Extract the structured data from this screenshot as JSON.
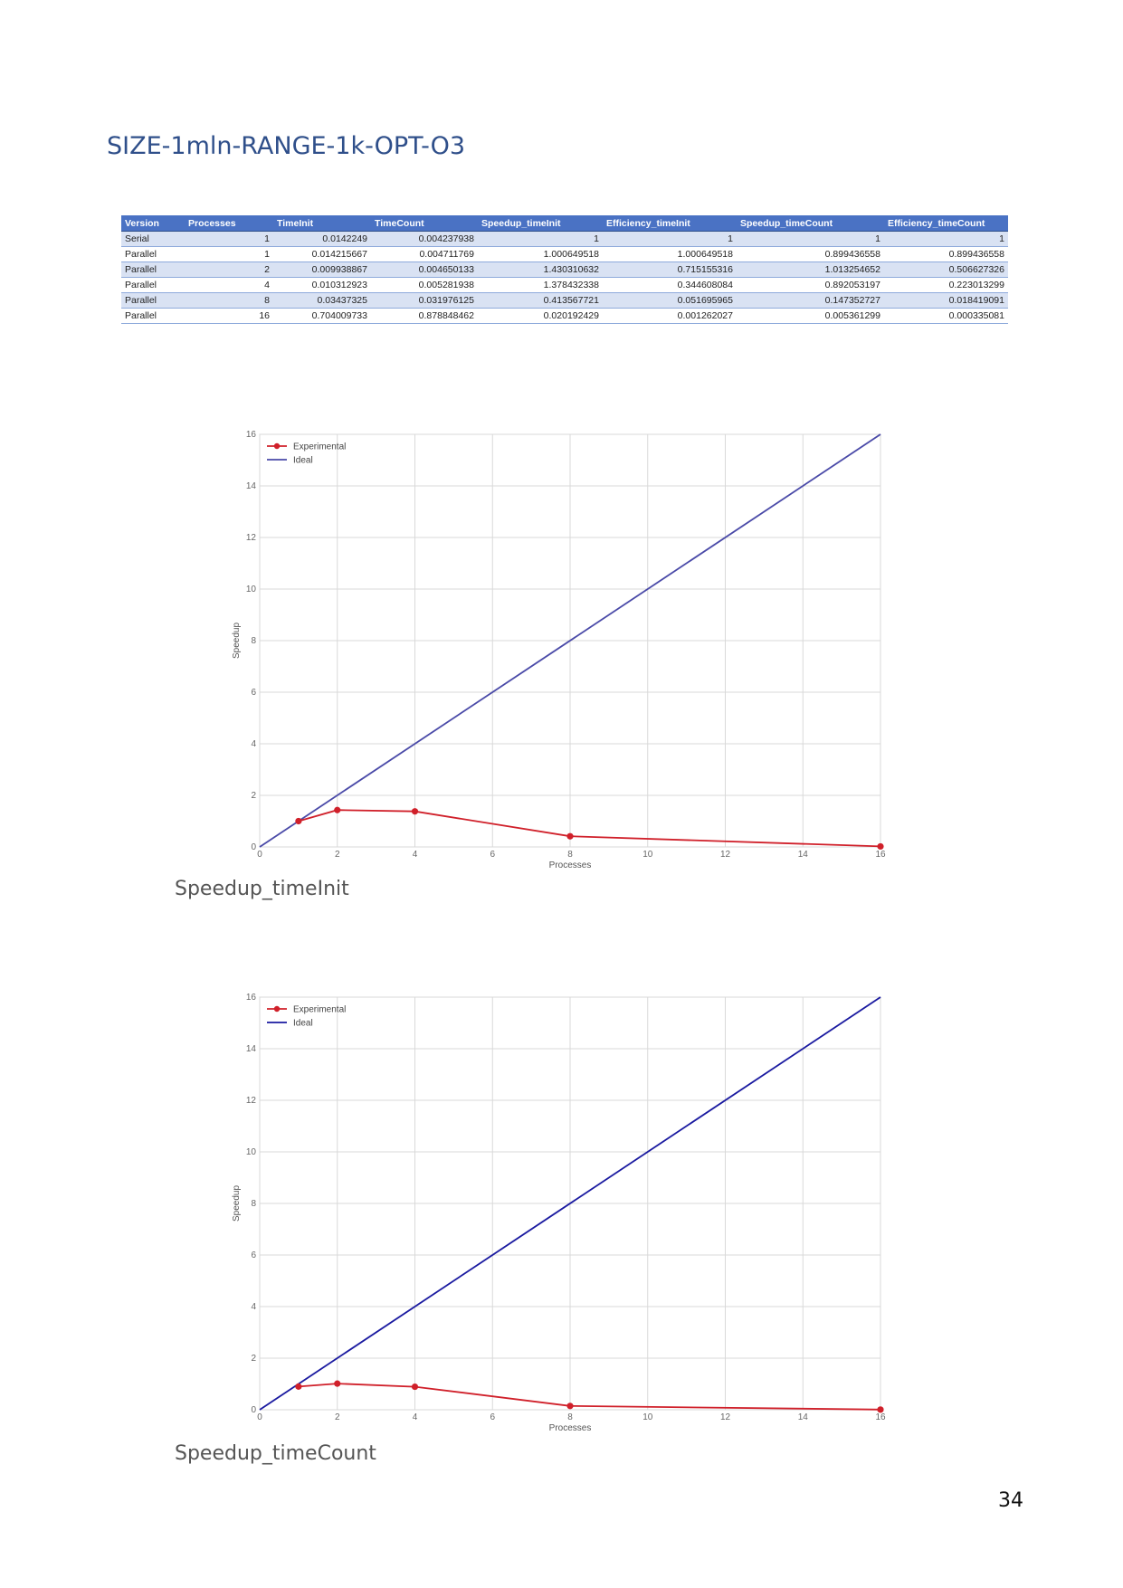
{
  "page_title": "SIZE-1mln-RANGE-1k-OPT-O3",
  "table": {
    "headers": [
      "Version",
      "Processes",
      "TimeInit",
      "TimeCount",
      "Speedup_timeInit",
      "Efficiency_timeInit",
      "Speedup_timeCount",
      "Efficiency_timeCount"
    ],
    "rows": [
      [
        "Serial",
        "1",
        "0.0142249",
        "0.004237938",
        "1",
        "1",
        "1",
        "1"
      ],
      [
        "Parallel",
        "1",
        "0.014215667",
        "0.004711769",
        "1.000649518",
        "1.000649518",
        "0.899436558",
        "0.899436558"
      ],
      [
        "Parallel",
        "2",
        "0.009938867",
        "0.004650133",
        "1.430310632",
        "0.715155316",
        "1.013254652",
        "0.506627326"
      ],
      [
        "Parallel",
        "4",
        "0.010312923",
        "0.005281938",
        "1.378432338",
        "0.344608084",
        "0.892053197",
        "0.223013299"
      ],
      [
        "Parallel",
        "8",
        "0.03437325",
        "0.031976125",
        "0.413567721",
        "0.051695965",
        "0.147352727",
        "0.018419091"
      ],
      [
        "Parallel",
        "16",
        "0.704009733",
        "0.878848462",
        "0.020192429",
        "0.001262027",
        "0.005361299",
        "0.000335081"
      ]
    ]
  },
  "chart_data": [
    {
      "type": "line",
      "title": "",
      "xlabel": "Processes",
      "ylabel": "Speedup",
      "xlim": [
        0,
        16
      ],
      "ylim": [
        0,
        16
      ],
      "xticks": [
        "0",
        "2",
        "4",
        "6",
        "8",
        "10",
        "12",
        "14",
        "16"
      ],
      "yticks": [
        "0",
        "2",
        "4",
        "6",
        "8",
        "10",
        "12",
        "14",
        "16"
      ],
      "grid": true,
      "legend": "top-left",
      "series": [
        {
          "name": "Experimental",
          "color": "#d0202a",
          "markers": true,
          "x": [
            1,
            2,
            4,
            8,
            16
          ],
          "y": [
            1.000649518,
            1.430310632,
            1.378432338,
            0.413567721,
            0.020192429
          ]
        },
        {
          "name": "Ideal",
          "color": "#4a4aa8",
          "markers": false,
          "x": [
            0,
            16
          ],
          "y": [
            0,
            16
          ]
        }
      ]
    },
    {
      "type": "line",
      "title": "",
      "xlabel": "Processes",
      "ylabel": "Speedup",
      "xlim": [
        0,
        16
      ],
      "ylim": [
        0,
        16
      ],
      "xticks": [
        "0",
        "2",
        "4",
        "6",
        "8",
        "10",
        "12",
        "14",
        "16"
      ],
      "yticks": [
        "0",
        "2",
        "4",
        "6",
        "8",
        "10",
        "12",
        "14",
        "16"
      ],
      "grid": true,
      "legend": "top-left",
      "series": [
        {
          "name": "Experimental",
          "color": "#d0202a",
          "markers": true,
          "x": [
            1,
            2,
            4,
            8,
            16
          ],
          "y": [
            0.899436558,
            1.013254652,
            0.892053197,
            0.147352727,
            0.005361299
          ]
        },
        {
          "name": "Ideal",
          "color": "#1a1aa0",
          "markers": false,
          "x": [
            0,
            16
          ],
          "y": [
            0,
            16
          ]
        }
      ]
    }
  ],
  "captions": [
    "Speedup_timeInit",
    "Speedup_timeCount"
  ],
  "page_number": "34"
}
